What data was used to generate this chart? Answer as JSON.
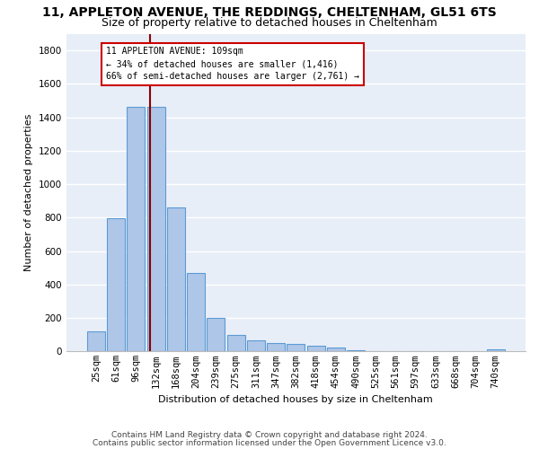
{
  "title1": "11, APPLETON AVENUE, THE REDDINGS, CHELTENHAM, GL51 6TS",
  "title2": "Size of property relative to detached houses in Cheltenham",
  "xlabel": "Distribution of detached houses by size in Cheltenham",
  "ylabel": "Number of detached properties",
  "footnote1": "Contains HM Land Registry data © Crown copyright and database right 2024.",
  "footnote2": "Contains public sector information licensed under the Open Government Licence v3.0.",
  "categories": [
    "25sqm",
    "61sqm",
    "96sqm",
    "132sqm",
    "168sqm",
    "204sqm",
    "239sqm",
    "275sqm",
    "311sqm",
    "347sqm",
    "382sqm",
    "418sqm",
    "454sqm",
    "490sqm",
    "525sqm",
    "561sqm",
    "597sqm",
    "633sqm",
    "668sqm",
    "704sqm",
    "740sqm"
  ],
  "values": [
    120,
    795,
    1460,
    1460,
    860,
    470,
    200,
    100,
    65,
    50,
    45,
    35,
    25,
    10,
    0,
    0,
    0,
    0,
    0,
    0,
    15
  ],
  "bar_color": "#aec6e8",
  "bar_edge_color": "#5b9bd5",
  "vline_color": "#8b0000",
  "vline_pos": 2.72,
  "annotation_text": "11 APPLETON AVENUE: 109sqm\n← 34% of detached houses are smaller (1,416)\n66% of semi-detached houses are larger (2,761) →",
  "annotation_box_edgecolor": "#cc0000",
  "ylim": [
    0,
    1900
  ],
  "yticks": [
    0,
    200,
    400,
    600,
    800,
    1000,
    1200,
    1400,
    1600,
    1800
  ],
  "background_color": "#e8eef8",
  "grid_color": "#ffffff",
  "title1_fontsize": 10,
  "title2_fontsize": 9,
  "axis_label_fontsize": 8,
  "tick_fontsize": 7.5,
  "footnote_fontsize": 6.5
}
